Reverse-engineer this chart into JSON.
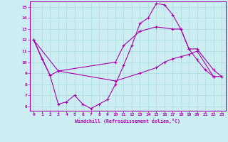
{
  "xlabel": "Windchill (Refroidissement éolien,°C)",
  "bg_color": "#cceef2",
  "line_color": "#aa00aa",
  "grid_color": "#aadddd",
  "xlim": [
    -0.5,
    23.5
  ],
  "ylim": [
    5.6,
    15.5
  ],
  "yticks": [
    6,
    7,
    8,
    9,
    10,
    11,
    12,
    13,
    14,
    15
  ],
  "xticks": [
    0,
    1,
    2,
    3,
    4,
    5,
    6,
    7,
    8,
    9,
    10,
    11,
    12,
    13,
    14,
    15,
    16,
    17,
    18,
    19,
    20,
    21,
    22,
    23
  ],
  "series1": [
    [
      0,
      12.0
    ],
    [
      1,
      10.3
    ],
    [
      2,
      8.8
    ],
    [
      3,
      6.2
    ],
    [
      4,
      6.4
    ],
    [
      5,
      7.0
    ],
    [
      6,
      6.2
    ],
    [
      7,
      5.8
    ],
    [
      8,
      6.2
    ],
    [
      9,
      6.6
    ],
    [
      10,
      8.0
    ],
    [
      11,
      9.7
    ],
    [
      12,
      11.5
    ],
    [
      13,
      13.5
    ],
    [
      14,
      14.0
    ],
    [
      15,
      15.3
    ],
    [
      16,
      15.2
    ],
    [
      17,
      14.3
    ],
    [
      18,
      13.0
    ],
    [
      19,
      11.2
    ],
    [
      20,
      10.2
    ],
    [
      21,
      9.3
    ],
    [
      22,
      8.7
    ]
  ],
  "series2": [
    [
      0,
      12.0
    ],
    [
      2,
      8.8
    ],
    [
      3,
      9.2
    ],
    [
      10,
      10.0
    ],
    [
      11,
      11.5
    ],
    [
      13,
      12.8
    ],
    [
      15,
      13.2
    ],
    [
      17,
      13.0
    ],
    [
      18,
      13.0
    ],
    [
      19,
      11.2
    ],
    [
      20,
      11.2
    ],
    [
      22,
      9.3
    ],
    [
      23,
      8.7
    ]
  ],
  "series3": [
    [
      0,
      12.0
    ],
    [
      3,
      9.2
    ],
    [
      10,
      8.3
    ],
    [
      13,
      9.0
    ],
    [
      15,
      9.5
    ],
    [
      16,
      10.0
    ],
    [
      17,
      10.3
    ],
    [
      18,
      10.5
    ],
    [
      19,
      10.7
    ],
    [
      20,
      11.0
    ],
    [
      22,
      8.7
    ],
    [
      23,
      8.7
    ]
  ]
}
